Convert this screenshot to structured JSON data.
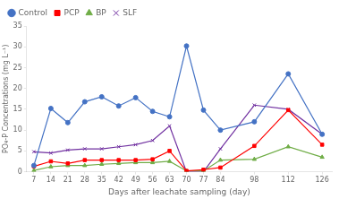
{
  "chart_data": {
    "type": "line",
    "x": [
      7,
      14,
      21,
      28,
      35,
      42,
      49,
      56,
      63,
      70,
      77,
      84,
      98,
      112,
      126
    ],
    "series": [
      {
        "name": "Control",
        "color": "#4472C4",
        "marker": "circle",
        "values": [
          1.5,
          15.2,
          11.8,
          16.8,
          18.0,
          15.8,
          17.8,
          14.5,
          13.2,
          30.2,
          14.8,
          10.0,
          12.0,
          23.5,
          9.0
        ]
      },
      {
        "name": "PCP",
        "color": "#FF0000",
        "marker": "square",
        "values": [
          1.3,
          2.5,
          2.0,
          2.8,
          2.8,
          2.8,
          2.8,
          3.0,
          5.0,
          0.2,
          0.5,
          1.0,
          6.2,
          14.8,
          6.5
        ]
      },
      {
        "name": "BP",
        "color": "#70AD47",
        "marker": "triangle",
        "values": [
          0.3,
          1.2,
          1.5,
          1.5,
          1.8,
          2.0,
          2.2,
          2.2,
          2.5,
          0.2,
          0.2,
          2.8,
          3.0,
          6.0,
          3.5
        ]
      },
      {
        "name": "SLF",
        "color": "#7030A0",
        "marker": "x",
        "values": [
          4.8,
          4.5,
          5.2,
          5.5,
          5.5,
          6.0,
          6.5,
          7.5,
          11.0,
          0.0,
          0.0,
          5.5,
          16.0,
          15.0,
          9.0
        ]
      }
    ],
    "x_label": "Days after leachate sampling (day)",
    "y_label": "PO₄-P Concentrations (mg L⁻¹)",
    "xlim": [
      4,
      130
    ],
    "xticks": [
      7,
      14,
      21,
      28,
      35,
      42,
      49,
      56,
      63,
      70,
      77,
      84,
      98,
      112,
      126
    ],
    "ylim": [
      0,
      35
    ],
    "yticks": [
      0,
      5,
      10,
      15,
      20,
      25,
      30,
      35
    ],
    "grid": false,
    "legend": "upper left"
  }
}
